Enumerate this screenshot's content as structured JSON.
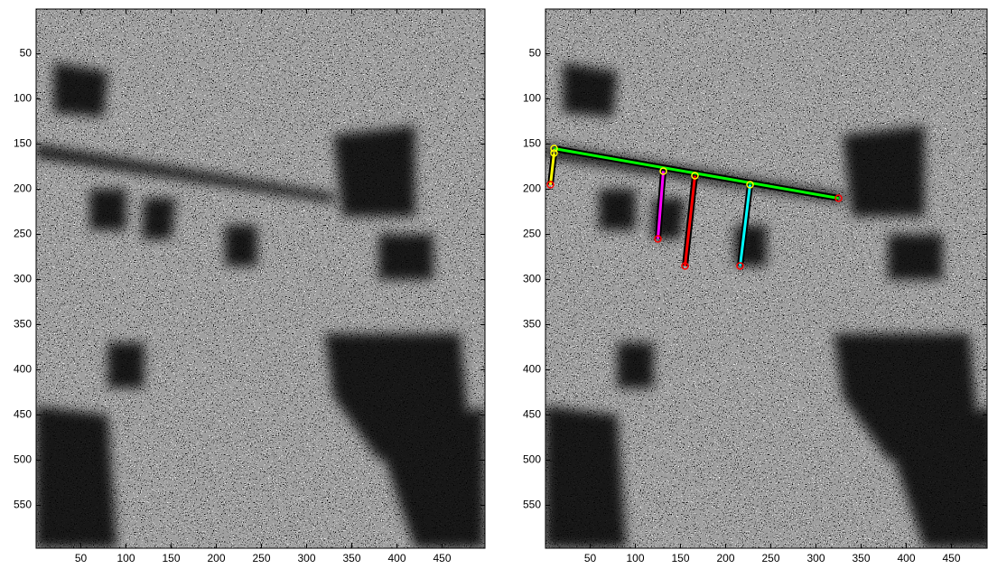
{
  "chart_data": [
    {
      "type": "image",
      "xlim": [
        0.5,
        497.5
      ],
      "ylim": [
        0.5,
        597.5
      ],
      "y_reversed": true,
      "xticks": [
        50,
        100,
        150,
        200,
        250,
        300,
        350,
        400,
        450
      ],
      "yticks": [
        50,
        100,
        150,
        200,
        250,
        300,
        350,
        400,
        450,
        500,
        550
      ]
    },
    {
      "type": "image",
      "xlim": [
        0.5,
        489.5
      ],
      "ylim": [
        0.5,
        597.5
      ],
      "y_reversed": true,
      "xticks": [
        50,
        100,
        150,
        200,
        250,
        300,
        350,
        400,
        450
      ],
      "yticks": [
        50,
        100,
        150,
        200,
        250,
        300,
        350,
        400,
        450,
        500,
        550
      ],
      "series": [
        {
          "color": "#00ff00",
          "x": [
            10,
            325
          ],
          "values": [
            155,
            210
          ]
        },
        {
          "color": "#ffff00",
          "x": [
            10,
            6
          ],
          "values": [
            160,
            195
          ]
        },
        {
          "color": "#ff00ff",
          "x": [
            131,
            125
          ],
          "values": [
            180,
            255
          ]
        },
        {
          "color": "#ff0000",
          "x": [
            166,
            155
          ],
          "values": [
            185,
            285
          ]
        },
        {
          "color": "#00ffff",
          "x": [
            227,
            216
          ],
          "values": [
            195,
            285
          ]
        }
      ]
    }
  ]
}
